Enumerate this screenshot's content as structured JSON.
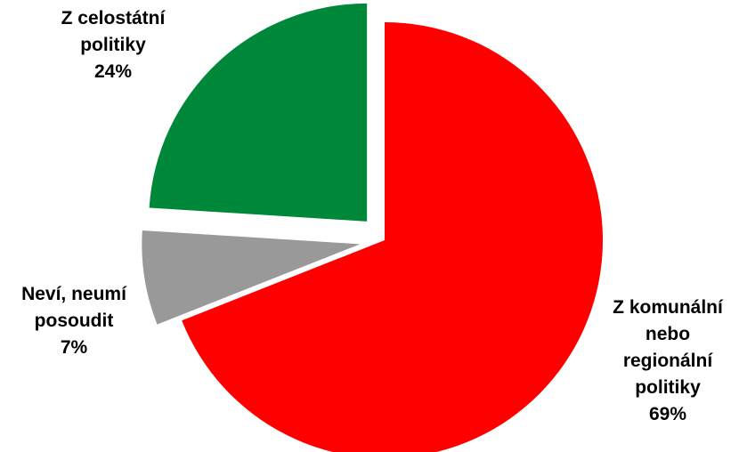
{
  "chart_data": {
    "type": "pie",
    "slices": [
      {
        "label_lines": [
          "Z komunální",
          "nebo",
          "regionální",
          "politiky"
        ],
        "value_label": "69%",
        "value": 69,
        "color": "#ff0000"
      },
      {
        "label_lines": [
          "Neví, neumí",
          "posoudit"
        ],
        "value_label": "7%",
        "value": 7,
        "color": "#999999"
      },
      {
        "label_lines": [
          "Z celostátní",
          "politiky"
        ],
        "value_label": "24%",
        "value": 24,
        "color": "#00883a"
      }
    ],
    "start_angle_deg": 0,
    "direction": "clockwise",
    "exploded": true,
    "legend": "none"
  }
}
